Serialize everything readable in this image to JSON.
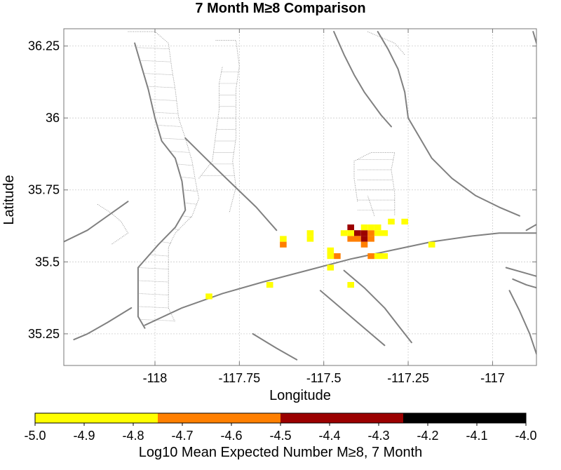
{
  "chart_data": {
    "type": "heatmap",
    "title": "7 Month M≥8 Comparison",
    "xlabel": "Longitude",
    "ylabel": "Latitude",
    "xlim": [
      -118.27,
      -116.87
    ],
    "ylim": [
      35.14,
      36.31
    ],
    "x_ticks": [
      {
        "value": -118,
        "label": "-118"
      },
      {
        "value": -117.75,
        "label": "-117.75"
      },
      {
        "value": -117.5,
        "label": "-117.5"
      },
      {
        "value": -117.25,
        "label": "-117.25"
      },
      {
        "value": -117,
        "label": "-117"
      }
    ],
    "y_ticks": [
      {
        "value": 36.25,
        "label": "36.25"
      },
      {
        "value": 36,
        "label": "36"
      },
      {
        "value": 35.75,
        "label": "35.75"
      },
      {
        "value": 35.5,
        "label": "35.5"
      },
      {
        "value": 35.25,
        "label": "35.25"
      }
    ],
    "grid": true,
    "colorbar": {
      "label": "Log10 Mean Expected Number M≥8, 7 Month",
      "range": [
        -5.0,
        -4.0
      ],
      "bins": [
        {
          "min": -5.0,
          "max": -4.75,
          "color": "#ffff00"
        },
        {
          "min": -4.75,
          "max": -4.5,
          "color": "#ff7f00"
        },
        {
          "min": -4.5,
          "max": -4.25,
          "color": "#9b0000"
        },
        {
          "min": -4.25,
          "max": -4.0,
          "color": "#000000"
        }
      ],
      "tick_labels": [
        "-5.0",
        "-4.9",
        "-4.8",
        "-4.7",
        "-4.6",
        "-4.5",
        "-4.4",
        "-4.3",
        "-4.2",
        "-4.1",
        "-4.0"
      ]
    },
    "cell_size_deg": 0.02,
    "cells": [
      {
        "lon": -117.42,
        "lat": 35.62,
        "value": -4.35
      },
      {
        "lon": -117.4,
        "lat": 35.6,
        "value": -4.35
      },
      {
        "lon": -117.38,
        "lat": 35.6,
        "value": -4.35
      },
      {
        "lon": -117.38,
        "lat": 35.58,
        "value": -4.35
      },
      {
        "lon": -117.42,
        "lat": 35.58,
        "value": -4.6
      },
      {
        "lon": -117.4,
        "lat": 35.58,
        "value": -4.6
      },
      {
        "lon": -117.36,
        "lat": 35.6,
        "value": -4.6
      },
      {
        "lon": -117.36,
        "lat": 35.58,
        "value": -4.6
      },
      {
        "lon": -117.38,
        "lat": 35.56,
        "value": -4.6
      },
      {
        "lon": -117.62,
        "lat": 35.56,
        "value": -4.6
      },
      {
        "lon": -117.46,
        "lat": 35.52,
        "value": -4.6
      },
      {
        "lon": -117.36,
        "lat": 35.52,
        "value": -4.6
      },
      {
        "lon": -117.38,
        "lat": 35.62,
        "value": -4.85
      },
      {
        "lon": -117.36,
        "lat": 35.62,
        "value": -4.85
      },
      {
        "lon": -117.34,
        "lat": 35.62,
        "value": -4.85
      },
      {
        "lon": -117.34,
        "lat": 35.6,
        "value": -4.85
      },
      {
        "lon": -117.32,
        "lat": 35.6,
        "value": -4.85
      },
      {
        "lon": -117.44,
        "lat": 35.6,
        "value": -4.85
      },
      {
        "lon": -117.42,
        "lat": 35.6,
        "value": -4.85
      },
      {
        "lon": -117.54,
        "lat": 35.6,
        "value": -4.85
      },
      {
        "lon": -117.54,
        "lat": 35.58,
        "value": -4.85
      },
      {
        "lon": -117.62,
        "lat": 35.58,
        "value": -4.85
      },
      {
        "lon": -117.3,
        "lat": 35.64,
        "value": -4.85
      },
      {
        "lon": -117.26,
        "lat": 35.64,
        "value": -4.85
      },
      {
        "lon": -117.48,
        "lat": 35.54,
        "value": -4.85
      },
      {
        "lon": -117.48,
        "lat": 35.52,
        "value": -4.85
      },
      {
        "lon": -117.34,
        "lat": 35.52,
        "value": -4.85
      },
      {
        "lon": -117.32,
        "lat": 35.52,
        "value": -4.85
      },
      {
        "lon": -117.48,
        "lat": 35.48,
        "value": -4.85
      },
      {
        "lon": -117.42,
        "lat": 35.42,
        "value": -4.85
      },
      {
        "lon": -117.66,
        "lat": 35.42,
        "value": -4.85
      },
      {
        "lon": -117.84,
        "lat": 35.38,
        "value": -4.85
      },
      {
        "lon": -117.18,
        "lat": 35.56,
        "value": -4.85
      }
    ],
    "faults_solid": [
      [
        [
          -118.06,
          36.26
        ],
        [
          -118.04,
          36.18
        ],
        [
          -118.02,
          36.1
        ],
        [
          -118.0,
          36.0
        ],
        [
          -117.98,
          35.92
        ],
        [
          -117.94,
          35.86
        ],
        [
          -117.92,
          35.78
        ],
        [
          -117.91,
          35.68
        ],
        [
          -117.94,
          35.62
        ],
        [
          -117.99,
          35.56
        ],
        [
          -118.05,
          35.48
        ],
        [
          -118.05,
          35.4
        ],
        [
          -118.05,
          35.31
        ],
        [
          -118.03,
          35.27
        ]
      ],
      [
        [
          -118.03,
          35.28
        ],
        [
          -117.92,
          35.34
        ],
        [
          -117.8,
          35.39
        ],
        [
          -117.68,
          35.43
        ],
        [
          -117.55,
          35.47
        ],
        [
          -117.42,
          35.51
        ],
        [
          -117.3,
          35.54
        ],
        [
          -117.18,
          35.57
        ],
        [
          -117.06,
          35.59
        ],
        [
          -116.98,
          35.6
        ],
        [
          -116.9,
          35.6
        ],
        [
          -116.87,
          35.6
        ]
      ],
      [
        [
          -117.91,
          35.93
        ],
        [
          -117.85,
          35.86
        ],
        [
          -117.78,
          35.78
        ],
        [
          -117.7,
          35.69
        ],
        [
          -117.64,
          35.61
        ]
      ],
      [
        [
          -117.47,
          36.3
        ],
        [
          -117.44,
          36.22
        ],
        [
          -117.41,
          36.15
        ],
        [
          -117.38,
          36.09
        ],
        [
          -117.33,
          36.01
        ],
        [
          -117.3,
          35.97
        ]
      ],
      [
        [
          -117.34,
          36.3
        ],
        [
          -117.31,
          36.24
        ],
        [
          -117.28,
          36.17
        ],
        [
          -117.26,
          36.09
        ],
        [
          -117.25,
          36.0
        ],
        [
          -117.22,
          35.94
        ],
        [
          -117.18,
          35.86
        ],
        [
          -117.12,
          35.79
        ],
        [
          -117.05,
          35.73
        ],
        [
          -116.98,
          35.69
        ],
        [
          -116.92,
          35.66
        ]
      ],
      [
        [
          -117.44,
          35.47
        ],
        [
          -117.38,
          35.41
        ],
        [
          -117.32,
          35.34
        ],
        [
          -117.28,
          35.28
        ],
        [
          -117.24,
          35.22
        ]
      ],
      [
        [
          -117.51,
          35.4
        ],
        [
          -117.46,
          35.35
        ],
        [
          -117.41,
          35.3
        ],
        [
          -117.35,
          35.24
        ],
        [
          -117.32,
          35.21
        ]
      ],
      [
        [
          -118.07,
          35.34
        ],
        [
          -118.14,
          35.29
        ],
        [
          -118.2,
          35.25
        ],
        [
          -118.24,
          35.23
        ]
      ],
      [
        [
          -117.71,
          35.25
        ],
        [
          -117.64,
          35.2
        ],
        [
          -117.58,
          35.16
        ]
      ],
      [
        [
          -118.27,
          35.57
        ],
        [
          -118.2,
          35.61
        ],
        [
          -118.14,
          35.66
        ],
        [
          -118.08,
          35.71
        ]
      ],
      [
        [
          -116.96,
          35.48
        ],
        [
          -116.9,
          35.46
        ],
        [
          -116.87,
          35.45
        ]
      ],
      [
        [
          -116.94,
          35.44
        ],
        [
          -116.9,
          35.42
        ],
        [
          -116.87,
          35.41
        ]
      ],
      [
        [
          -116.95,
          35.4
        ],
        [
          -116.92,
          35.33
        ],
        [
          -116.89,
          35.25
        ],
        [
          -116.87,
          35.18
        ]
      ],
      [
        [
          -116.9,
          35.61
        ],
        [
          -116.87,
          35.63
        ]
      ],
      [
        [
          -116.88,
          36.3
        ],
        [
          -116.87,
          36.26
        ]
      ]
    ],
    "faults_dotted": [
      [
        [
          -118.08,
          36.3
        ],
        [
          -118.0,
          36.3
        ],
        [
          -117.96,
          36.26
        ],
        [
          -117.95,
          36.17
        ],
        [
          -117.94,
          36.1
        ],
        [
          -117.93,
          36.0
        ],
        [
          -117.91,
          35.93
        ],
        [
          -117.89,
          35.85
        ],
        [
          -117.88,
          35.78
        ],
        [
          -117.87,
          35.72
        ],
        [
          -117.89,
          35.66
        ],
        [
          -117.94,
          35.6
        ],
        [
          -117.96,
          35.55
        ],
        [
          -117.96,
          35.47
        ],
        [
          -117.96,
          35.4
        ],
        [
          -117.96,
          35.34
        ],
        [
          -117.94,
          35.29
        ]
      ],
      [
        [
          -117.82,
          36.27
        ],
        [
          -117.76,
          36.27
        ],
        [
          -117.75,
          36.18
        ],
        [
          -117.76,
          36.1
        ],
        [
          -117.76,
          36.02
        ],
        [
          -117.76,
          35.93
        ],
        [
          -117.77,
          35.85
        ],
        [
          -117.76,
          35.76
        ],
        [
          -117.78,
          35.67
        ]
      ],
      [
        [
          -117.87,
          35.79
        ],
        [
          -117.83,
          35.85
        ],
        [
          -117.82,
          35.94
        ],
        [
          -117.81,
          36.03
        ],
        [
          -117.81,
          36.12
        ],
        [
          -117.8,
          36.18
        ]
      ],
      [
        [
          -117.37,
          36.3
        ],
        [
          -117.29,
          36.26
        ],
        [
          -117.26,
          36.22
        ]
      ],
      [
        [
          -117.4,
          35.71
        ],
        [
          -117.41,
          35.79
        ],
        [
          -117.41,
          35.85
        ],
        [
          -117.36,
          35.88
        ],
        [
          -117.29,
          35.88
        ],
        [
          -117.3,
          35.82
        ],
        [
          -117.29,
          35.74
        ],
        [
          -117.29,
          35.66
        ]
      ],
      [
        [
          -118.17,
          35.7
        ],
        [
          -118.13,
          35.67
        ],
        [
          -118.1,
          35.64
        ],
        [
          -118.08,
          35.6
        ],
        [
          -118.13,
          35.56
        ]
      ],
      [
        [
          -117.35,
          35.66
        ],
        [
          -117.37,
          35.73
        ]
      ]
    ]
  }
}
